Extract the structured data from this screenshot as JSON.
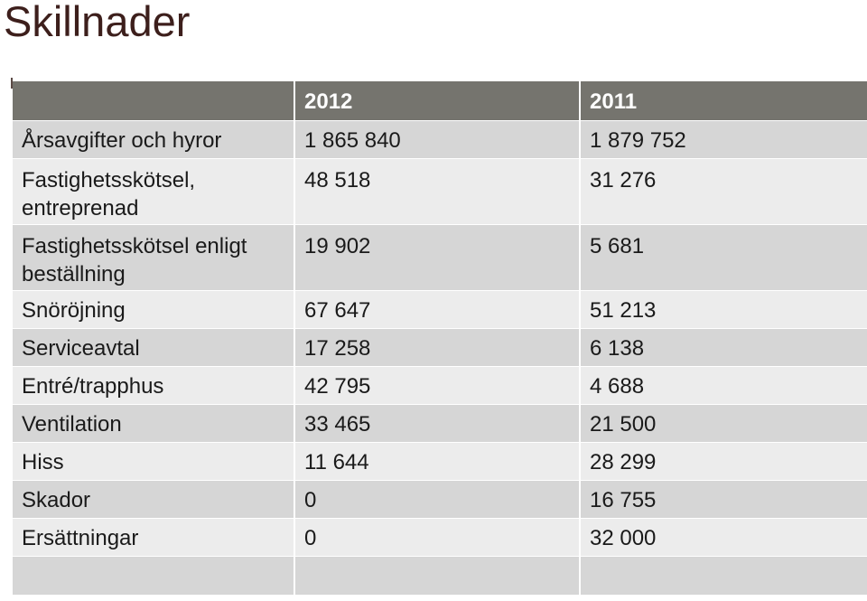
{
  "title": "Skillnader",
  "table": {
    "columns": [
      "",
      "2012",
      "2011"
    ],
    "rows": [
      {
        "label": "Årsavgifter och hyror",
        "v2012": "1 865 840",
        "v2011": "1 879 752"
      },
      {
        "label": "Fastighetsskötsel, entreprenad",
        "v2012": "48 518",
        "v2011": "31 276"
      },
      {
        "label": "Fastighetsskötsel enligt beställning",
        "v2012": "19 902",
        "v2011": "5 681"
      },
      {
        "label": "Snöröjning",
        "v2012": "67 647",
        "v2011": "51 213"
      },
      {
        "label": "Serviceavtal",
        "v2012": "17 258",
        "v2011": "6 138"
      },
      {
        "label": "Entré/trapphus",
        "v2012": "42 795",
        "v2011": "4 688"
      },
      {
        "label": "Ventilation",
        "v2012": "33 465",
        "v2011": "21 500"
      },
      {
        "label": "Hiss",
        "v2012": "11 644",
        "v2011": "28 299"
      },
      {
        "label": "Skador",
        "v2012": "0",
        "v2011": "16 755"
      },
      {
        "label": "Ersättningar",
        "v2012": "0",
        "v2011": "32 000"
      }
    ]
  }
}
